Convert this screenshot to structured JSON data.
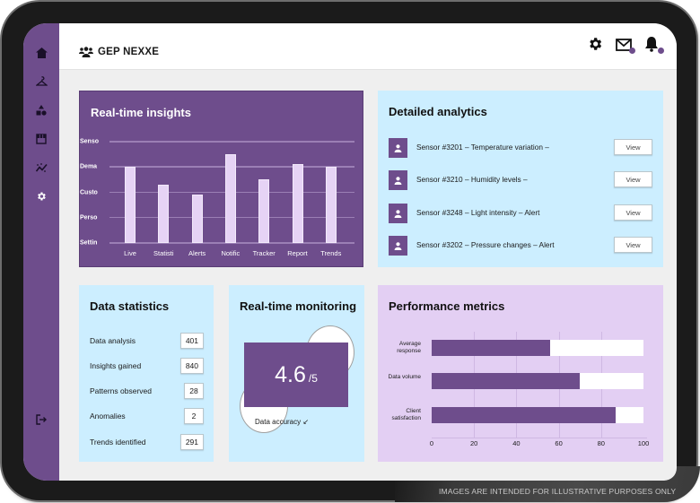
{
  "app": {
    "brand": "GEP NEXXE"
  },
  "sidebar": {
    "items": [
      {
        "icon": "home-icon"
      },
      {
        "icon": "hanger-icon"
      },
      {
        "icon": "shapes-icon"
      },
      {
        "icon": "store-icon"
      },
      {
        "icon": "analytics-icon"
      },
      {
        "icon": "gear-icon"
      }
    ],
    "logout_icon": "logout-icon"
  },
  "topbar": {
    "icons": [
      "settings-icon",
      "mail-icon",
      "bell-icon"
    ]
  },
  "insights": {
    "title": "Real-time insights"
  },
  "analytics": {
    "title": "Detailed analytics",
    "rows": [
      {
        "text": "Sensor #3201 – Temperature variation –",
        "button": "View"
      },
      {
        "text": "Sensor #3210 – Humidity levels –",
        "button": "View"
      },
      {
        "text": "Sensor #3248 – Light intensity – Alert",
        "button": "View"
      },
      {
        "text": "Sensor #3202 – Pressure changes – Alert",
        "button": "View"
      }
    ]
  },
  "stats": {
    "title": "Data statistics",
    "rows": [
      {
        "label": "Data analysis",
        "value": "401"
      },
      {
        "label": "Insights gained",
        "value": "840"
      },
      {
        "label": "Patterns observed",
        "value": "28"
      },
      {
        "label": "Anomalies",
        "value": "2"
      },
      {
        "label": "Trends identified",
        "value": "291"
      }
    ]
  },
  "monitor": {
    "title": "Real-time monitoring",
    "score": "4.6",
    "score_max": "/5",
    "accuracy_label": "Data accuracy ↙"
  },
  "perf": {
    "title": "Performance metrics"
  },
  "footer_note": "IMAGES ARE INTENDED FOR ILLUSTRATIVE PURPOSES ONLY",
  "colors": {
    "primary": "#6e4d8c",
    "light_blue": "#cceeff",
    "light_purple": "#e3cff3",
    "bar_fill": "#e6d3f5"
  },
  "chart_data": [
    {
      "type": "bar",
      "title": "Real-time insights",
      "categories": [
        "Live",
        "Statisti",
        "Alerts",
        "Notific",
        "Tracker",
        "Report",
        "Trends"
      ],
      "values": [
        3.0,
        2.3,
        1.9,
        3.5,
        2.5,
        3.1,
        3.0
      ],
      "y_tick_labels": [
        "Settin",
        "Perso",
        "Custo",
        "Dema",
        "Senso"
      ],
      "ylim": [
        0,
        4
      ],
      "grid": true,
      "xlabel": "",
      "ylabel": ""
    },
    {
      "type": "bar",
      "orientation": "horizontal",
      "title": "Performance metrics",
      "categories": [
        "Average response",
        "Data volume",
        "Client satisfaction"
      ],
      "values": [
        56,
        70,
        87
      ],
      "x_ticks": [
        0,
        20,
        40,
        60,
        80,
        100
      ],
      "xlim": [
        0,
        100
      ],
      "grid": true
    }
  ]
}
